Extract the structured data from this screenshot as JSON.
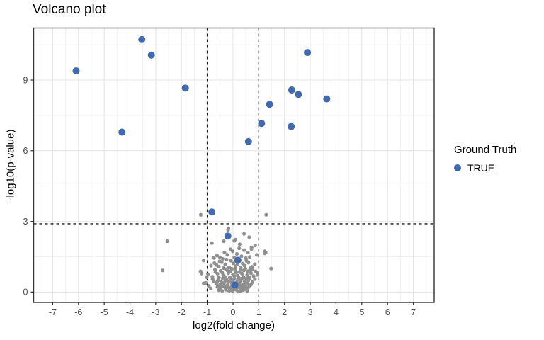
{
  "title": "Volcano plot",
  "colors": {
    "true_point": "#4169AF",
    "noise_point": "#8F8F8F",
    "threshold_line": "#1A1A1A",
    "grid_major": "#E4E4E4",
    "grid_minor": "#F2F2F2",
    "panel_border": "#333333",
    "axis_text": "#4D4D4D",
    "tick_mark": "#333333"
  },
  "legend": {
    "title": "Ground Truth",
    "items": [
      {
        "label": "TRUE",
        "color": "#4169AF"
      }
    ]
  },
  "chart_data": {
    "type": "scatter",
    "title": "Volcano plot",
    "xlabel": "log2(fold change)",
    "ylabel": "-log10(p-value)",
    "xlim": [
      -7.74,
      7.81
    ],
    "ylim": [
      -0.44,
      11.21
    ],
    "x_ticks": [
      -7,
      -6,
      -5,
      -4,
      -3,
      -2,
      -1,
      0,
      1,
      2,
      3,
      4,
      5,
      6,
      7
    ],
    "y_ticks": [
      0,
      3,
      6,
      9
    ],
    "x_minor_step": 0.5,
    "y_minor_ticks": [
      1.5,
      4.5,
      7.5,
      10.5
    ],
    "grid": "major+minor",
    "legend_position": "right",
    "thresholds": {
      "vlines_x": [
        -1,
        1
      ],
      "hline_y": 2.9,
      "style": "dashed"
    },
    "series": [
      {
        "name": "noise",
        "color": "#8F8F8F",
        "radius": 2.6,
        "points": [
          [
            -2.55,
            2.16
          ],
          [
            -2.73,
            0.92
          ],
          [
            -1.25,
            3.28
          ],
          [
            1.29,
            3.28
          ],
          [
            -1.26,
            0.88
          ],
          [
            -1.22,
            0.79
          ],
          [
            -0.97,
            0.76
          ],
          [
            -1.06,
            0.39
          ],
          [
            -0.86,
            0.15
          ],
          [
            1.48,
            1.0
          ],
          [
            1.27,
            1.68
          ],
          [
            1.23,
            1.73
          ],
          [
            -1.14,
            1.34
          ],
          [
            -1.14,
            0.37
          ],
          [
            -1.02,
            0.63
          ],
          [
            -0.94,
            0.26
          ],
          [
            1.24,
            1.64
          ],
          [
            0.95,
            0.73
          ],
          [
            -0.18,
            2.71
          ],
          [
            -0.19,
            2.63
          ],
          [
            0.05,
            2.18
          ],
          [
            -0.36,
            2.16
          ],
          [
            -0.82,
            2.08
          ],
          [
            0.26,
            2.03
          ],
          [
            0.63,
            2.33
          ],
          [
            0.09,
            2.23
          ],
          [
            0.86,
            1.98
          ],
          [
            0.72,
            1.9
          ],
          [
            0.43,
            2.47
          ],
          [
            -0.74,
            1.45
          ],
          [
            -0.51,
            1.48
          ],
          [
            0.92,
            1.58
          ],
          [
            0.58,
            1.68
          ],
          [
            -0.33,
            1.68
          ],
          [
            -0.01,
            1.73
          ],
          [
            0.43,
            1.78
          ],
          [
            0.72,
            1.83
          ],
          [
            -0.62,
            1.55
          ],
          [
            0.15,
            1.62
          ],
          [
            0.33,
            1.52
          ],
          [
            -0.22,
            1.58
          ],
          [
            0.05,
            1.47
          ],
          [
            0.5,
            1.44
          ],
          [
            -0.4,
            1.41
          ],
          [
            0.24,
            1.86
          ],
          [
            -0.1,
            1.82
          ],
          [
            0.65,
            1.49
          ],
          [
            -0.72,
            1.23
          ],
          [
            0.2,
            1.28
          ],
          [
            -0.3,
            1.18
          ],
          [
            0.45,
            1.12
          ],
          [
            -0.55,
            1.08
          ],
          [
            0.02,
            1.22
          ],
          [
            0.6,
            1.25
          ],
          [
            -0.15,
            1.05
          ],
          [
            0.3,
            1.03
          ],
          [
            -0.44,
            1.27
          ],
          [
            0.74,
            1.07
          ],
          [
            -0.08,
            1.33
          ],
          [
            0.52,
            1.33
          ],
          [
            -0.25,
            1.38
          ],
          [
            0.1,
            1.1
          ],
          [
            0.38,
            1.21
          ],
          [
            -0.64,
            1.15
          ],
          [
            0.85,
            1.18
          ],
          [
            -0.37,
            1.02
          ],
          [
            0.68,
            1.02
          ],
          [
            0.95,
            0.81
          ],
          [
            -0.85,
            1.12
          ],
          [
            0.18,
            1.18
          ],
          [
            -0.52,
            1.31
          ],
          [
            -0.7,
            0.95
          ],
          [
            -0.48,
            0.9
          ],
          [
            -0.28,
            0.97
          ],
          [
            -0.1,
            0.88
          ],
          [
            0.08,
            0.95
          ],
          [
            0.25,
            0.85
          ],
          [
            0.42,
            0.92
          ],
          [
            0.58,
            0.88
          ],
          [
            0.75,
            0.95
          ],
          [
            -0.6,
            0.78
          ],
          [
            -0.38,
            0.72
          ],
          [
            -0.18,
            0.8
          ],
          [
            0.0,
            0.75
          ],
          [
            0.18,
            0.7
          ],
          [
            0.35,
            0.78
          ],
          [
            0.55,
            0.72
          ],
          [
            0.7,
            0.8
          ],
          [
            -0.8,
            0.65
          ],
          [
            -0.55,
            0.62
          ],
          [
            -0.32,
            0.65
          ],
          [
            -0.12,
            0.62
          ],
          [
            0.05,
            0.68
          ],
          [
            0.22,
            0.62
          ],
          [
            0.4,
            0.65
          ],
          [
            0.62,
            0.62
          ],
          [
            0.8,
            0.68
          ],
          [
            -0.68,
            0.85
          ],
          [
            0.88,
            0.88
          ],
          [
            -0.22,
            0.92
          ],
          [
            0.48,
            1.0
          ],
          [
            -0.42,
            0.83
          ],
          [
            0.12,
            0.83
          ],
          [
            0.3,
            0.95
          ],
          [
            -0.05,
            0.99
          ],
          [
            0.65,
            0.93
          ],
          [
            -0.75,
            0.45
          ],
          [
            -0.58,
            0.5
          ],
          [
            -0.45,
            0.42
          ],
          [
            -0.3,
            0.48
          ],
          [
            -0.15,
            0.45
          ],
          [
            0.0,
            0.5
          ],
          [
            0.15,
            0.42
          ],
          [
            0.3,
            0.48
          ],
          [
            0.45,
            0.45
          ],
          [
            0.6,
            0.5
          ],
          [
            0.75,
            0.42
          ],
          [
            -0.65,
            0.35
          ],
          [
            -0.5,
            0.32
          ],
          [
            -0.35,
            0.38
          ],
          [
            -0.2,
            0.32
          ],
          [
            -0.05,
            0.38
          ],
          [
            0.1,
            0.32
          ],
          [
            0.25,
            0.38
          ],
          [
            0.4,
            0.32
          ],
          [
            0.55,
            0.38
          ],
          [
            0.7,
            0.32
          ],
          [
            -0.79,
            0.55
          ],
          [
            0.85,
            0.55
          ],
          [
            -0.25,
            0.55
          ],
          [
            0.2,
            0.55
          ],
          [
            -0.1,
            0.58
          ],
          [
            0.35,
            0.58
          ],
          [
            0.5,
            0.58
          ],
          [
            -0.4,
            0.58
          ],
          [
            0.05,
            0.55
          ],
          [
            0.65,
            0.58
          ],
          [
            -0.62,
            0.42
          ],
          [
            0.48,
            0.35
          ],
          [
            -0.02,
            0.44
          ],
          [
            -0.6,
            0.22
          ],
          [
            -0.48,
            0.15
          ],
          [
            -0.38,
            0.25
          ],
          [
            -0.28,
            0.1
          ],
          [
            -0.18,
            0.2
          ],
          [
            -0.08,
            0.12
          ],
          [
            0.02,
            0.22
          ],
          [
            0.12,
            0.1
          ],
          [
            0.22,
            0.2
          ],
          [
            0.32,
            0.12
          ],
          [
            0.42,
            0.22
          ],
          [
            0.52,
            0.15
          ],
          [
            0.62,
            0.25
          ],
          [
            -0.55,
            0.08
          ],
          [
            -0.42,
            0.05
          ],
          [
            -0.3,
            0.18
          ],
          [
            -0.15,
            0.05
          ],
          [
            0.0,
            0.08
          ],
          [
            0.15,
            0.18
          ],
          [
            0.28,
            0.05
          ],
          [
            0.4,
            0.08
          ],
          [
            0.55,
            0.05
          ],
          [
            -0.22,
            0.28
          ],
          [
            0.18,
            0.28
          ],
          [
            -0.05,
            0.25
          ],
          [
            0.08,
            0.28
          ],
          [
            0.35,
            0.28
          ],
          [
            -0.35,
            0.28
          ],
          [
            0.48,
            0.28
          ],
          [
            -0.12,
            0.15
          ],
          [
            0.05,
            0.15
          ],
          [
            0.25,
            0.25
          ],
          [
            -0.25,
            0.22
          ],
          [
            0.45,
            0.12
          ],
          [
            -0.45,
            0.25
          ],
          [
            0.58,
            0.18
          ],
          [
            -0.52,
            0.28
          ],
          [
            0.3,
            0.22
          ],
          [
            -0.02,
            0.05
          ],
          [
            0.2,
            0.02
          ]
        ]
      },
      {
        "name": "TRUE",
        "color": "#4169AF",
        "radius": 5,
        "points": [
          [
            -3.54,
            10.72
          ],
          [
            -3.17,
            10.06
          ],
          [
            -6.09,
            9.39
          ],
          [
            -1.85,
            8.66
          ],
          [
            -4.31,
            6.79
          ],
          [
            2.89,
            10.17
          ],
          [
            2.28,
            8.58
          ],
          [
            2.54,
            8.39
          ],
          [
            3.64,
            8.2
          ],
          [
            1.42,
            7.97
          ],
          [
            1.11,
            7.16
          ],
          [
            2.26,
            7.03
          ],
          [
            0.6,
            6.39
          ],
          [
            -0.82,
            3.4
          ],
          [
            -0.2,
            2.38
          ],
          [
            0.19,
            1.35
          ],
          [
            0.07,
            0.3
          ]
        ]
      }
    ]
  }
}
